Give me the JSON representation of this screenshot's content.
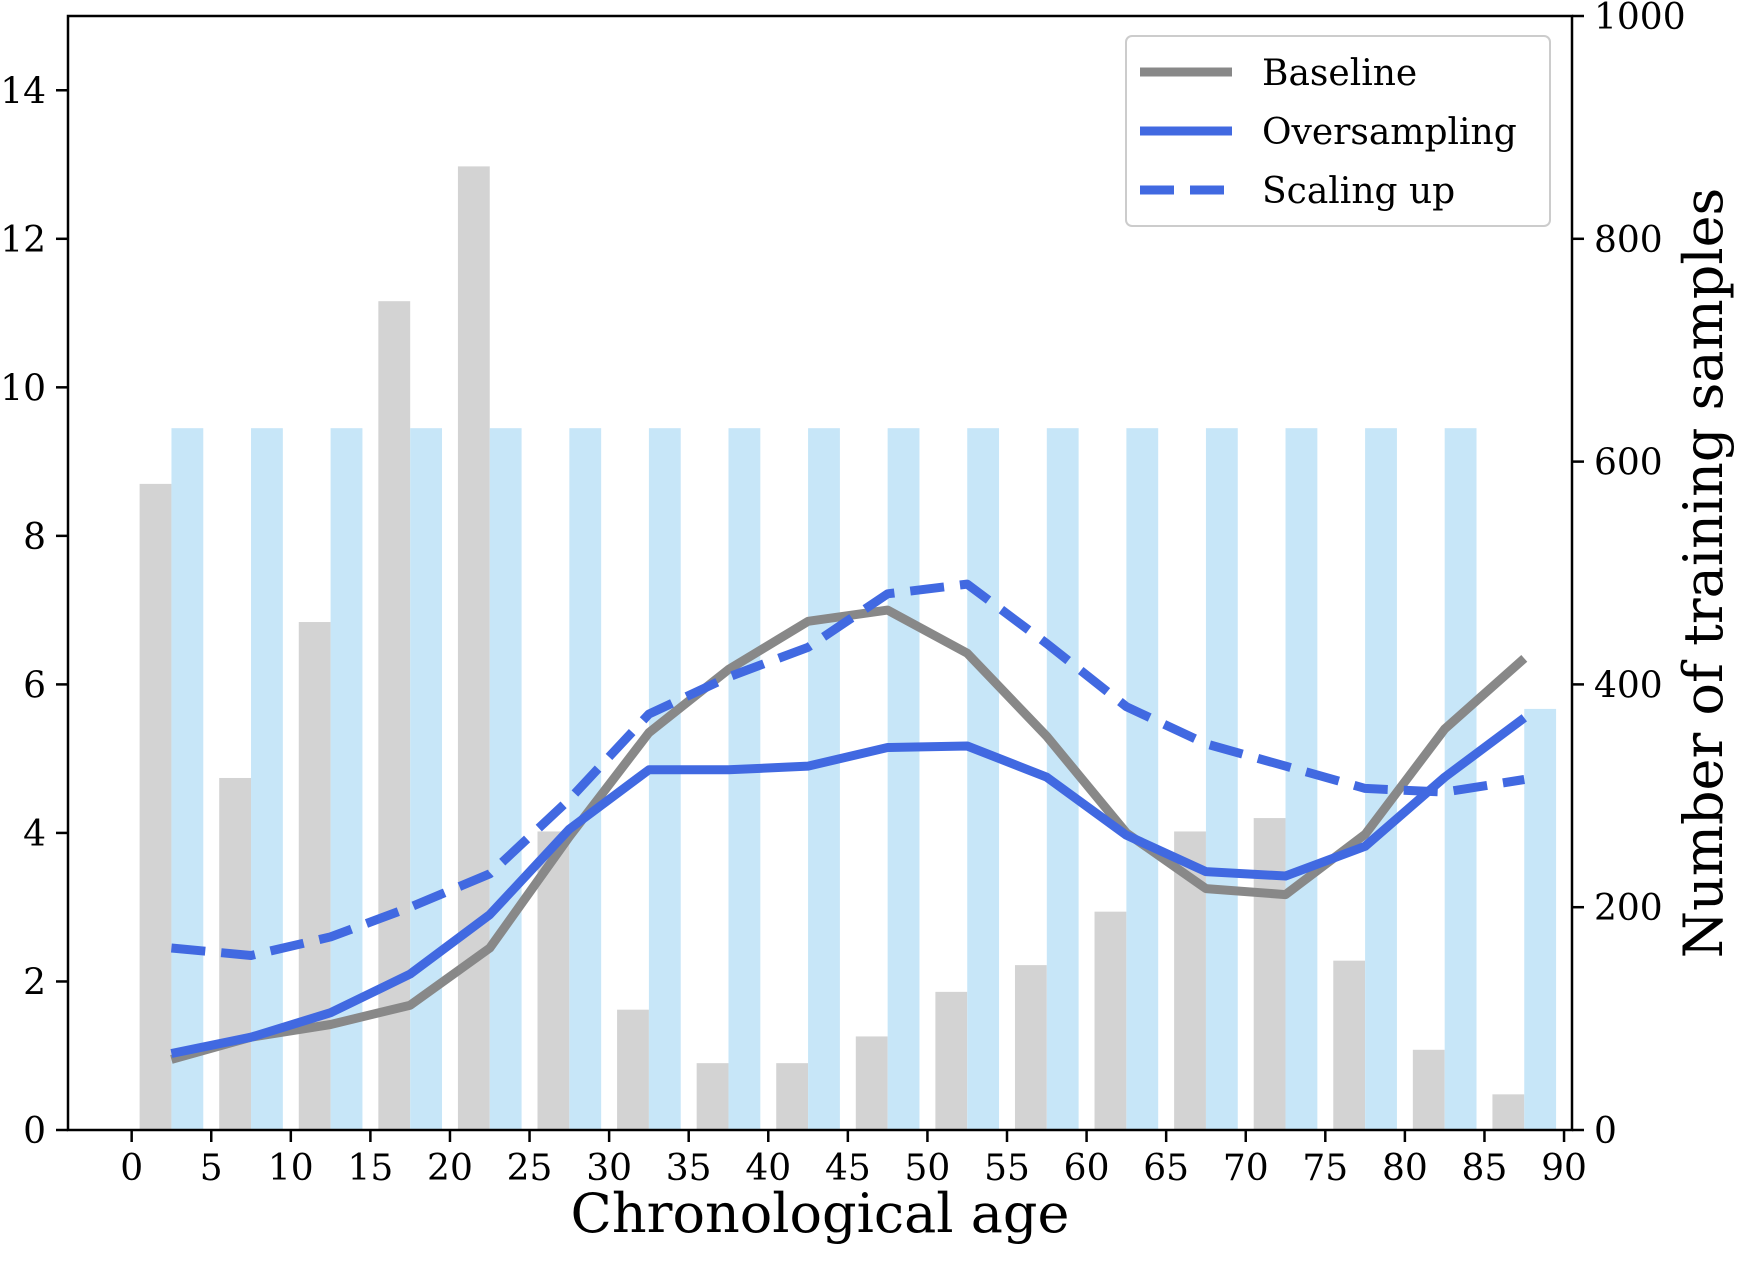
{
  "chart_data": {
    "type": "bar+line",
    "xlabel": "Chronological age",
    "ylabel_right": "Number of training samples",
    "xlim": [
      -4,
      90.5
    ],
    "ylim_left": [
      0,
      15
    ],
    "ylim_right": [
      0,
      1000
    ],
    "x_ticks": [
      0,
      5,
      10,
      15,
      20,
      25,
      30,
      35,
      40,
      45,
      50,
      55,
      60,
      65,
      70,
      75,
      80,
      85,
      90
    ],
    "y_left_ticks": [
      0,
      2,
      4,
      6,
      8,
      10,
      12,
      14
    ],
    "y_right_ticks": [
      0,
      200,
      400,
      600,
      800,
      1000
    ],
    "bar_groups": [
      {
        "name": "",
        "axis": "right",
        "color": "#d3d3d3",
        "x": [
          1.5,
          6.5,
          11.5,
          16.5,
          21.5,
          26.5,
          31.5,
          36.5,
          41.5,
          46.5,
          51.5,
          56.5,
          61.5,
          66.5,
          71.5,
          76.5,
          81.5,
          86.5
        ],
        "values": [
          580,
          316,
          456,
          744,
          865,
          268,
          108,
          60,
          60,
          84,
          124,
          148,
          196,
          268,
          280,
          152,
          72,
          32
        ]
      },
      {
        "name": "",
        "axis": "right",
        "color": "#c7e6f8",
        "x": [
          3.5,
          8.5,
          13.5,
          18.5,
          23.5,
          28.5,
          33.5,
          38.5,
          43.5,
          48.5,
          53.5,
          58.5,
          63.5,
          68.5,
          73.5,
          78.5,
          83.5,
          88.5
        ],
        "values": [
          630,
          630,
          630,
          630,
          630,
          630,
          630,
          630,
          630,
          630,
          630,
          630,
          630,
          630,
          630,
          630,
          630,
          378
        ]
      }
    ],
    "series": [
      {
        "name": "Baseline",
        "axis": "left",
        "color": "#888888",
        "style": "solid",
        "x": [
          2.5,
          7.5,
          12.5,
          17.5,
          22.5,
          27.5,
          32.5,
          37.5,
          42.5,
          47.5,
          52.5,
          57.5,
          62.5,
          67.5,
          72.5,
          77.5,
          82.5,
          87.5
        ],
        "values": [
          0.95,
          1.25,
          1.42,
          1.68,
          2.45,
          3.95,
          5.35,
          6.2,
          6.85,
          7.0,
          6.42,
          5.3,
          4.0,
          3.25,
          3.17,
          3.98,
          5.4,
          6.35
        ]
      },
      {
        "name": "Oversampling",
        "axis": "left",
        "color": "#4169e1",
        "style": "solid",
        "x": [
          2.5,
          7.5,
          12.5,
          17.5,
          22.5,
          27.5,
          32.5,
          37.5,
          42.5,
          47.5,
          52.5,
          57.5,
          62.5,
          67.5,
          72.5,
          77.5,
          82.5,
          87.5
        ],
        "values": [
          1.03,
          1.25,
          1.58,
          2.1,
          2.9,
          4.05,
          4.85,
          4.85,
          4.9,
          5.15,
          5.17,
          4.75,
          3.97,
          3.48,
          3.42,
          3.82,
          4.75,
          5.55
        ]
      },
      {
        "name": "Scaling up",
        "axis": "left",
        "color": "#4169e1",
        "style": "dashed",
        "x": [
          2.5,
          7.5,
          12.5,
          17.5,
          22.5,
          27.5,
          32.5,
          37.5,
          42.5,
          47.5,
          52.5,
          57.5,
          62.5,
          67.5,
          72.5,
          77.5,
          82.5,
          87.5
        ],
        "values": [
          2.45,
          2.35,
          2.6,
          3.0,
          3.45,
          4.45,
          5.6,
          6.1,
          6.5,
          7.22,
          7.35,
          6.55,
          5.7,
          5.2,
          4.9,
          4.6,
          4.55,
          4.72
        ]
      }
    ],
    "legend": {
      "placement": "top-right",
      "entries": [
        "Baseline",
        "Oversampling",
        "Scaling up"
      ]
    },
    "grid": false
  }
}
